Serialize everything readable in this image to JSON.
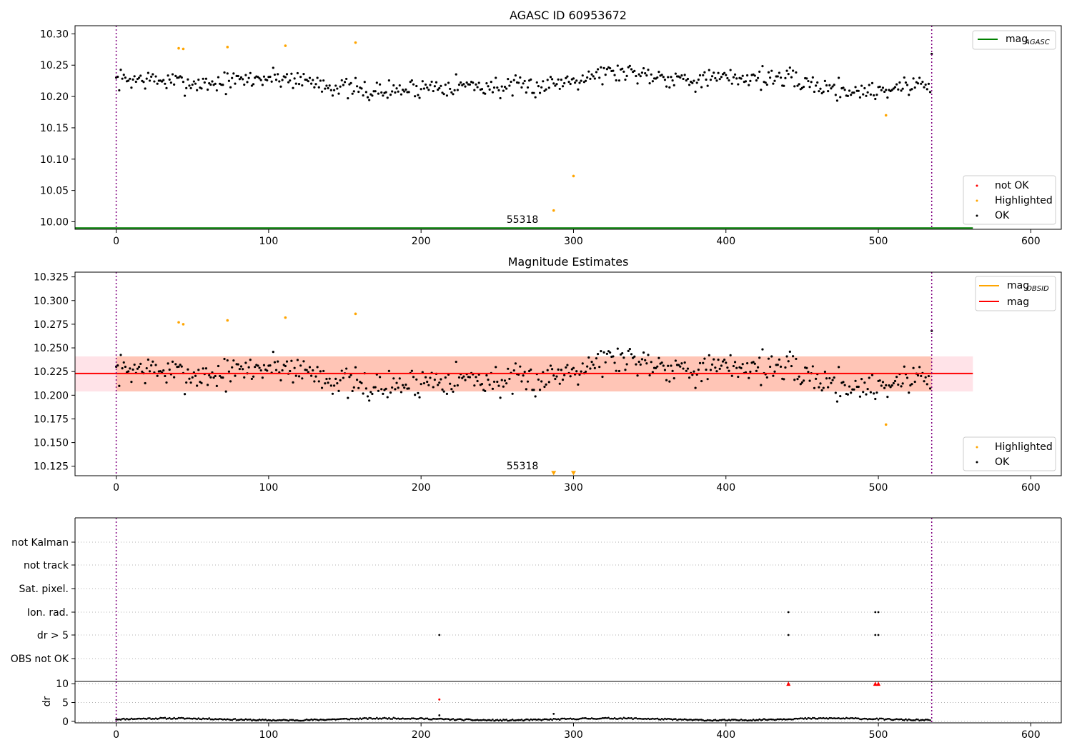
{
  "chart_data": [
    {
      "type": "scatter",
      "title": "AGASC ID 60953672",
      "xlim": [
        -27,
        620
      ],
      "ylim": [
        9.988,
        10.313
      ],
      "x_ticks": [
        0,
        100,
        200,
        300,
        400,
        500,
        600
      ],
      "y_ticks": [
        10.0,
        10.05,
        10.1,
        10.15,
        10.2,
        10.25,
        10.3
      ],
      "y_tick_labels": [
        "10.00",
        "10.05",
        "10.10",
        "10.15",
        "10.20",
        "10.25",
        "10.30"
      ],
      "vlines": [
        0,
        535
      ],
      "text_annotations": [
        {
          "label": "55318",
          "x": 266,
          "y": 10.0
        }
      ],
      "reference_line": {
        "name_main": "mag",
        "name_sub": "AGASC",
        "y": 9.99,
        "x_range": [
          -27,
          562
        ],
        "color": "#008000"
      },
      "legend_lines": [
        {
          "main": "mag",
          "sub": "AGASC",
          "color": "#008000"
        }
      ],
      "legend_points": [
        {
          "label": "not OK",
          "color": "#ff0000"
        },
        {
          "label": "Highlighted",
          "color": "#ffa500"
        },
        {
          "label": "OK",
          "color": "#000000"
        }
      ],
      "series": [
        {
          "name": "OK",
          "color": "#000000",
          "n": 535,
          "x_range": [
            0,
            534
          ],
          "y_mean": 10.222,
          "y_spread": 0.018
        },
        {
          "name": "Highlighted",
          "color": "#ffa500",
          "points": [
            [
              41,
              10.277
            ],
            [
              44,
              10.276
            ],
            [
              73,
              10.279
            ],
            [
              111,
              10.281
            ],
            [
              157,
              10.286
            ],
            [
              505,
              10.17
            ],
            [
              300,
              10.073
            ],
            [
              287,
              10.018
            ]
          ]
        }
      ]
    },
    {
      "type": "scatter",
      "title": "Magnitude Estimates",
      "xlim": [
        -27,
        620
      ],
      "ylim": [
        10.115,
        10.33
      ],
      "x_ticks": [
        0,
        100,
        200,
        300,
        400,
        500,
        600
      ],
      "y_ticks": [
        10.125,
        10.15,
        10.175,
        10.2,
        10.225,
        10.25,
        10.275,
        10.3,
        10.325
      ],
      "y_tick_labels": [
        "10.125",
        "10.150",
        "10.175",
        "10.200",
        "10.225",
        "10.250",
        "10.275",
        "10.300",
        "10.325"
      ],
      "vlines": [
        0,
        535
      ],
      "text_annotations": [
        {
          "label": "55318",
          "x": 266,
          "y": 10.121
        }
      ],
      "mag": {
        "name": "mag",
        "y": 10.223,
        "x_range": [
          -27,
          562
        ],
        "color": "#ff0000"
      },
      "mag_obsid": {
        "name_main": "mag",
        "name_sub": "OBSID",
        "color": "#ffa500"
      },
      "bands": [
        {
          "y_range": [
            10.204,
            10.241
          ],
          "color": "#ffc0cb",
          "alpha": 0.45
        },
        {
          "y_range": [
            10.204,
            10.241
          ],
          "x_range": [
            0,
            535
          ],
          "color": "#ffa07a",
          "alpha": 0.45
        }
      ],
      "legend_lines": [
        {
          "main": "mag",
          "sub": "OBSID",
          "color": "#ffa500"
        },
        {
          "main": "mag",
          "sub": "",
          "color": "#ff0000"
        }
      ],
      "legend_points": [
        {
          "label": "Highlighted",
          "color": "#ffa500"
        },
        {
          "label": "OK",
          "color": "#000000"
        }
      ],
      "series": [
        {
          "name": "OK",
          "color": "#000000",
          "n": 535,
          "x_range": [
            0,
            534
          ],
          "y_mean": 10.222,
          "y_spread": 0.018
        },
        {
          "name": "Highlighted",
          "color": "#ffa500",
          "points": [
            [
              41,
              10.277
            ],
            [
              44,
              10.275
            ],
            [
              73,
              10.279
            ],
            [
              111,
              10.282
            ],
            [
              157,
              10.286
            ],
            [
              505,
              10.169
            ]
          ]
        },
        {
          "name": "Highlighted (off-scale)",
          "marker": "triangle-down",
          "color": "#ffa500",
          "points": [
            [
              287,
              10.117
            ],
            [
              300,
              10.117
            ]
          ]
        }
      ]
    },
    {
      "type": "scatter",
      "title": "",
      "xlim": [
        -27,
        620
      ],
      "categories": [
        "not Kalman",
        "not track",
        "Sat. pixel.",
        "Ion. rad.",
        "dr > 5",
        "OBS not OK"
      ],
      "vlines": [
        0,
        535
      ],
      "flags": [
        {
          "category": "Ion. rad.",
          "x": [
            441,
            498,
            500
          ]
        },
        {
          "category": "dr > 5",
          "x": [
            212,
            441,
            498,
            500
          ]
        }
      ]
    },
    {
      "type": "scatter",
      "title": "",
      "ylabel": "dr",
      "xlim": [
        -27,
        620
      ],
      "ylim": [
        -0.4,
        10.6
      ],
      "x_ticks": [
        0,
        100,
        200,
        300,
        400,
        500,
        600
      ],
      "y_ticks": [
        0,
        5,
        10
      ],
      "y_tick_labels": [
        "0",
        "5",
        "10"
      ],
      "vlines": [
        0,
        535
      ],
      "series": [
        {
          "name": "dr",
          "color": "#000000",
          "n": 535,
          "x_range": [
            0,
            534
          ],
          "y_mean": 0.55,
          "y_spread": 0.25,
          "outliers": [
            [
              212,
              1.6
            ],
            [
              287,
              2.0
            ]
          ]
        },
        {
          "name": "dr > 5",
          "color": "#ff0000",
          "points": [
            [
              212,
              5.8
            ]
          ]
        },
        {
          "name": "dr > 5 (off-scale)",
          "marker": "triangle-up",
          "color": "#ff0000",
          "points": [
            [
              441,
              10
            ],
            [
              498,
              10
            ],
            [
              500,
              10
            ]
          ]
        }
      ]
    }
  ]
}
